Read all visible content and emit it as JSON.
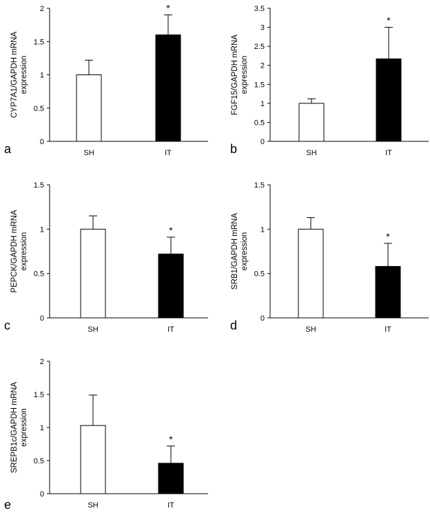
{
  "chart_data": [
    {
      "panel": "a",
      "type": "bar",
      "ylabel": [
        "CYP7A1/GAPDH mRNA",
        "expression"
      ],
      "categories": [
        "SH",
        "IT"
      ],
      "values": [
        1.0,
        1.6
      ],
      "errors": [
        0.22,
        0.3
      ],
      "significance": [
        "",
        "*"
      ],
      "bar_colors": [
        "#ffffff",
        "#000000"
      ],
      "ylim": [
        0,
        2
      ],
      "yticks": [
        0,
        0.5,
        1,
        1.5,
        2
      ],
      "ytick_labels": [
        "0",
        "0.5",
        "1",
        "1.5",
        "2"
      ]
    },
    {
      "panel": "b",
      "type": "bar",
      "ylabel": [
        "FGF15/GAPDH mRNA",
        "expression"
      ],
      "categories": [
        "SH",
        "IT"
      ],
      "values": [
        1.0,
        2.17
      ],
      "errors": [
        0.12,
        0.83
      ],
      "significance": [
        "",
        "*"
      ],
      "bar_colors": [
        "#ffffff",
        "#000000"
      ],
      "ylim": [
        0,
        3.5
      ],
      "yticks": [
        0,
        0.5,
        1,
        1.5,
        2,
        2.5,
        3,
        3.5
      ],
      "ytick_labels": [
        "0",
        "0.5",
        "1",
        "1.5",
        "2",
        "2.5",
        "3",
        "3.5"
      ]
    },
    {
      "panel": "c",
      "type": "bar",
      "ylabel": [
        "PEPCK/GAPDH mRNA",
        "expression"
      ],
      "categories": [
        "SH",
        "IT"
      ],
      "values": [
        1.0,
        0.72
      ],
      "errors": [
        0.15,
        0.19
      ],
      "significance": [
        "",
        "*"
      ],
      "bar_colors": [
        "#ffffff",
        "#000000"
      ],
      "ylim": [
        0,
        1.5
      ],
      "yticks": [
        0,
        0.5,
        1,
        1.5
      ],
      "ytick_labels": [
        "0",
        "0.5",
        "1",
        "1.5"
      ]
    },
    {
      "panel": "d",
      "type": "bar",
      "ylabel": [
        "SRB1/GAPDH mRNA",
        "expression"
      ],
      "categories": [
        "SH",
        "IT"
      ],
      "values": [
        1.0,
        0.58
      ],
      "errors": [
        0.13,
        0.26
      ],
      "significance": [
        "",
        "*"
      ],
      "bar_colors": [
        "#ffffff",
        "#000000"
      ],
      "ylim": [
        0,
        1.5
      ],
      "yticks": [
        0,
        0.5,
        1,
        1.5
      ],
      "ytick_labels": [
        "0",
        "0.5",
        "1",
        "1.5"
      ]
    },
    {
      "panel": "e",
      "type": "bar",
      "ylabel": [
        "SREPB1c/GAPDH mRNA",
        "expression"
      ],
      "categories": [
        "SH",
        "IT"
      ],
      "values": [
        1.03,
        0.46
      ],
      "errors": [
        0.46,
        0.26
      ],
      "significance": [
        "",
        "*"
      ],
      "bar_colors": [
        "#ffffff",
        "#000000"
      ],
      "ylim": [
        0,
        2
      ],
      "yticks": [
        0,
        0.5,
        1,
        1.5,
        2
      ],
      "ytick_labels": [
        "0",
        "0.5",
        "1",
        "1.5",
        "2"
      ]
    }
  ]
}
